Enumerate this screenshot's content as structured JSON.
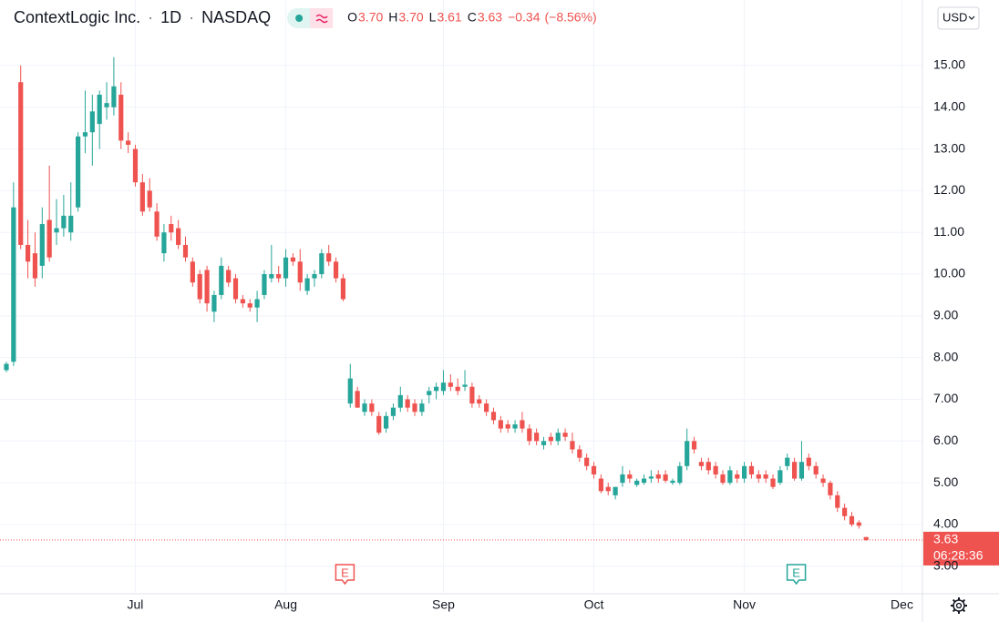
{
  "chart_data": {
    "type": "candlestick",
    "header": {
      "symbol": "ContextLogic Inc.",
      "separator": "·",
      "interval": "1D",
      "exchange": "NASDAQ"
    },
    "legend": {
      "letters": [
        "O",
        "H",
        "L",
        "C"
      ],
      "values": [
        {
          "value": 3.7,
          "label": "3.70"
        },
        {
          "value": 3.7,
          "label": "3.70"
        },
        {
          "value": 3.61,
          "label": "3.61"
        },
        {
          "value": 3.63,
          "label": "3.63"
        }
      ],
      "change": {
        "value": -0.34,
        "label": "−0.34"
      },
      "change_pct": {
        "value": -8.56,
        "label": "(−8.56%)"
      }
    },
    "currency": "USD",
    "last_price": {
      "value": 3.63,
      "label": "3.63"
    },
    "countdown": "06:28:36",
    "event_markers": [
      "E",
      "E"
    ],
    "up_color": "#26a69a",
    "down_color": "#ef5350",
    "grid": true,
    "ylim": [
      2.34,
      16.57
    ],
    "yticks": [
      {
        "value": 3,
        "label": "3.00"
      },
      {
        "value": 4,
        "label": "4.00"
      },
      {
        "value": 5,
        "label": "5.00"
      },
      {
        "value": 6,
        "label": "6.00"
      },
      {
        "value": 7,
        "label": "7.00"
      },
      {
        "value": 8,
        "label": "8.00"
      },
      {
        "value": 9,
        "label": "9.00"
      },
      {
        "value": 10,
        "label": "10.00"
      },
      {
        "value": 11,
        "label": "11.00"
      },
      {
        "value": 12,
        "label": "12.00"
      },
      {
        "value": 13,
        "label": "13.00"
      },
      {
        "value": 14,
        "label": "14.00"
      },
      {
        "value": 15,
        "label": "15.00"
      }
    ],
    "categories": [
      null,
      null,
      null,
      null,
      null,
      null,
      null,
      null,
      null,
      null,
      null,
      null,
      null,
      null,
      null,
      null,
      null,
      null,
      "Jul",
      null,
      null,
      null,
      null,
      null,
      null,
      null,
      null,
      null,
      null,
      null,
      null,
      null,
      null,
      null,
      null,
      null,
      null,
      null,
      null,
      "Aug",
      null,
      null,
      null,
      null,
      null,
      null,
      null,
      null,
      null,
      null,
      null,
      null,
      null,
      null,
      null,
      null,
      null,
      null,
      null,
      null,
      null,
      "Sep",
      null,
      null,
      null,
      null,
      null,
      null,
      null,
      null,
      null,
      null,
      null,
      null,
      null,
      null,
      null,
      null,
      null,
      null,
      null,
      null,
      "Oct",
      null,
      null,
      null,
      null,
      null,
      null,
      null,
      null,
      null,
      null,
      null,
      null,
      null,
      null,
      null,
      null,
      null,
      null,
      null,
      null,
      "Nov",
      null,
      null,
      null,
      null,
      null,
      null,
      null,
      null,
      null,
      null,
      null,
      null,
      null,
      null,
      null,
      null,
      null,
      null,
      null,
      null,
      null,
      "Dec"
    ],
    "open": [
      7.7,
      7.9,
      14.6,
      10.7,
      10.5,
      10.2,
      11.3,
      11.0,
      11.1,
      11.0,
      11.6,
      13.3,
      13.4,
      13.6,
      14.0,
      14.0,
      14.3,
      13.2,
      13.0,
      12.2,
      12.0,
      11.5,
      10.5,
      11.2,
      11.1,
      10.7,
      10.3,
      10.0,
      10.1,
      9.1,
      9.5,
      10.1,
      9.9,
      9.4,
      9.3,
      9.2,
      9.5,
      9.9,
      10.0,
      9.9,
      10.4,
      10.3,
      9.6,
      9.9,
      10.0,
      10.5,
      10.3,
      9.9,
      6.9,
      7.2,
      6.7,
      6.9,
      6.6,
      6.3,
      6.6,
      6.8,
      7.0,
      6.9,
      6.7,
      7.1,
      7.2,
      7.2,
      7.4,
      7.3,
      7.3,
      7.3,
      7.0,
      6.9,
      6.7,
      6.5,
      6.4,
      6.3,
      6.5,
      6.3,
      6.2,
      5.9,
      6.1,
      6.0,
      6.2,
      6.0,
      5.8,
      5.6,
      5.4,
      5.1,
      4.9,
      4.7,
      5.0,
      5.2,
      4.95,
      5.0,
      5.1,
      5.2,
      5.2,
      5.0,
      5.0,
      5.4,
      6.0,
      5.5,
      5.5,
      5.4,
      5.2,
      5.0,
      5.2,
      5.1,
      5.4,
      5.2,
      5.2,
      5.1,
      5.0,
      5.4,
      5.5,
      5.1,
      5.6,
      5.4,
      5.1,
      5.0,
      4.7,
      4.4,
      4.2,
      4.05,
      3.7,
      null,
      null,
      null,
      null,
      null
    ],
    "high": [
      7.9,
      12.2,
      15.0,
      11.3,
      11.0,
      11.6,
      12.6,
      11.8,
      11.9,
      12.2,
      13.4,
      14.4,
      14.3,
      14.4,
      14.6,
      15.2,
      14.6,
      13.4,
      13.1,
      12.4,
      12.3,
      11.7,
      11.2,
      11.4,
      11.3,
      10.9,
      10.4,
      10.1,
      10.2,
      9.6,
      10.4,
      10.2,
      10.0,
      9.5,
      9.4,
      9.6,
      10.1,
      10.7,
      10.2,
      10.6,
      10.5,
      10.6,
      10.0,
      10.1,
      10.6,
      10.7,
      10.4,
      10.0,
      7.85,
      7.3,
      7.0,
      7.0,
      6.7,
      6.7,
      6.9,
      7.3,
      7.1,
      7.0,
      7.0,
      7.3,
      7.4,
      7.7,
      7.6,
      7.5,
      7.7,
      7.4,
      7.1,
      7.0,
      6.8,
      6.6,
      6.5,
      6.5,
      6.7,
      6.4,
      6.3,
      6.1,
      6.2,
      6.3,
      6.3,
      6.2,
      5.9,
      5.7,
      5.5,
      5.2,
      5.0,
      4.9,
      5.4,
      5.3,
      5.1,
      5.2,
      5.3,
      5.3,
      5.3,
      5.1,
      5.5,
      6.3,
      6.1,
      5.6,
      5.6,
      5.5,
      5.3,
      5.4,
      5.3,
      5.5,
      5.5,
      5.3,
      5.3,
      5.2,
      5.4,
      5.7,
      5.6,
      6.0,
      5.7,
      5.5,
      5.2,
      5.05,
      4.8,
      4.5,
      4.3,
      4.1,
      3.7,
      null,
      null,
      null,
      null,
      null
    ],
    "low": [
      7.65,
      7.8,
      10.6,
      9.9,
      9.7,
      9.9,
      10.3,
      10.7,
      10.9,
      10.8,
      11.5,
      12.9,
      12.6,
      13.0,
      13.7,
      13.8,
      13.0,
      12.9,
      12.1,
      11.4,
      11.5,
      10.8,
      10.3,
      10.8,
      10.6,
      10.3,
      9.7,
      9.3,
      9.1,
      8.85,
      9.4,
      9.7,
      9.3,
      9.2,
      9.1,
      8.85,
      9.4,
      9.8,
      9.8,
      9.7,
      10.2,
      9.6,
      9.5,
      9.7,
      9.9,
      10.2,
      9.8,
      9.35,
      6.8,
      6.8,
      6.6,
      6.6,
      6.15,
      6.2,
      6.5,
      6.7,
      6.7,
      6.6,
      6.6,
      6.9,
      7.0,
      7.1,
      7.2,
      7.1,
      7.2,
      6.8,
      6.8,
      6.6,
      6.4,
      6.2,
      6.2,
      6.2,
      6.2,
      5.9,
      5.9,
      5.8,
      5.9,
      5.9,
      6.0,
      5.7,
      5.5,
      5.3,
      5.1,
      4.75,
      4.7,
      4.6,
      4.9,
      5.0,
      4.9,
      4.95,
      5.0,
      5.0,
      5.0,
      4.95,
      4.95,
      5.3,
      5.7,
      5.3,
      5.2,
      5.1,
      4.95,
      4.95,
      5.0,
      5.0,
      5.1,
      5.0,
      5.0,
      4.85,
      4.95,
      5.3,
      5.05,
      5.05,
      5.3,
      5.1,
      4.9,
      4.6,
      4.3,
      4.1,
      3.95,
      3.9,
      3.61,
      null,
      null,
      null,
      null,
      null
    ],
    "close": [
      7.85,
      11.6,
      10.7,
      10.3,
      9.9,
      11.2,
      10.4,
      11.1,
      11.4,
      11.4,
      13.3,
      13.4,
      13.9,
      14.3,
      14.1,
      14.5,
      13.2,
      13.1,
      12.2,
      11.5,
      11.6,
      10.9,
      11.0,
      11.0,
      10.7,
      10.4,
      9.8,
      9.4,
      9.3,
      9.5,
      10.2,
      9.8,
      9.4,
      9.3,
      9.2,
      9.4,
      10.0,
      10.0,
      9.9,
      10.4,
      10.3,
      9.8,
      9.9,
      10.0,
      10.5,
      10.3,
      9.9,
      9.4,
      7.5,
      6.8,
      6.9,
      6.7,
      6.2,
      6.6,
      6.8,
      7.1,
      6.8,
      6.7,
      6.9,
      7.2,
      7.3,
      7.4,
      7.3,
      7.2,
      7.35,
      6.9,
      6.9,
      6.7,
      6.5,
      6.3,
      6.3,
      6.4,
      6.3,
      6.0,
      6.0,
      6.0,
      6.0,
      6.2,
      6.1,
      5.8,
      5.6,
      5.4,
      5.2,
      4.8,
      4.8,
      4.9,
      5.2,
      5.1,
      5.05,
      5.1,
      5.15,
      5.1,
      5.05,
      5.05,
      5.4,
      6.0,
      5.8,
      5.4,
      5.3,
      5.2,
      5.0,
      5.3,
      5.1,
      5.4,
      5.2,
      5.1,
      5.1,
      4.9,
      5.3,
      5.6,
      5.1,
      5.5,
      5.4,
      5.2,
      5.0,
      4.7,
      4.4,
      4.2,
      4.0,
      3.97,
      3.63,
      null,
      null,
      null,
      null,
      null
    ]
  }
}
